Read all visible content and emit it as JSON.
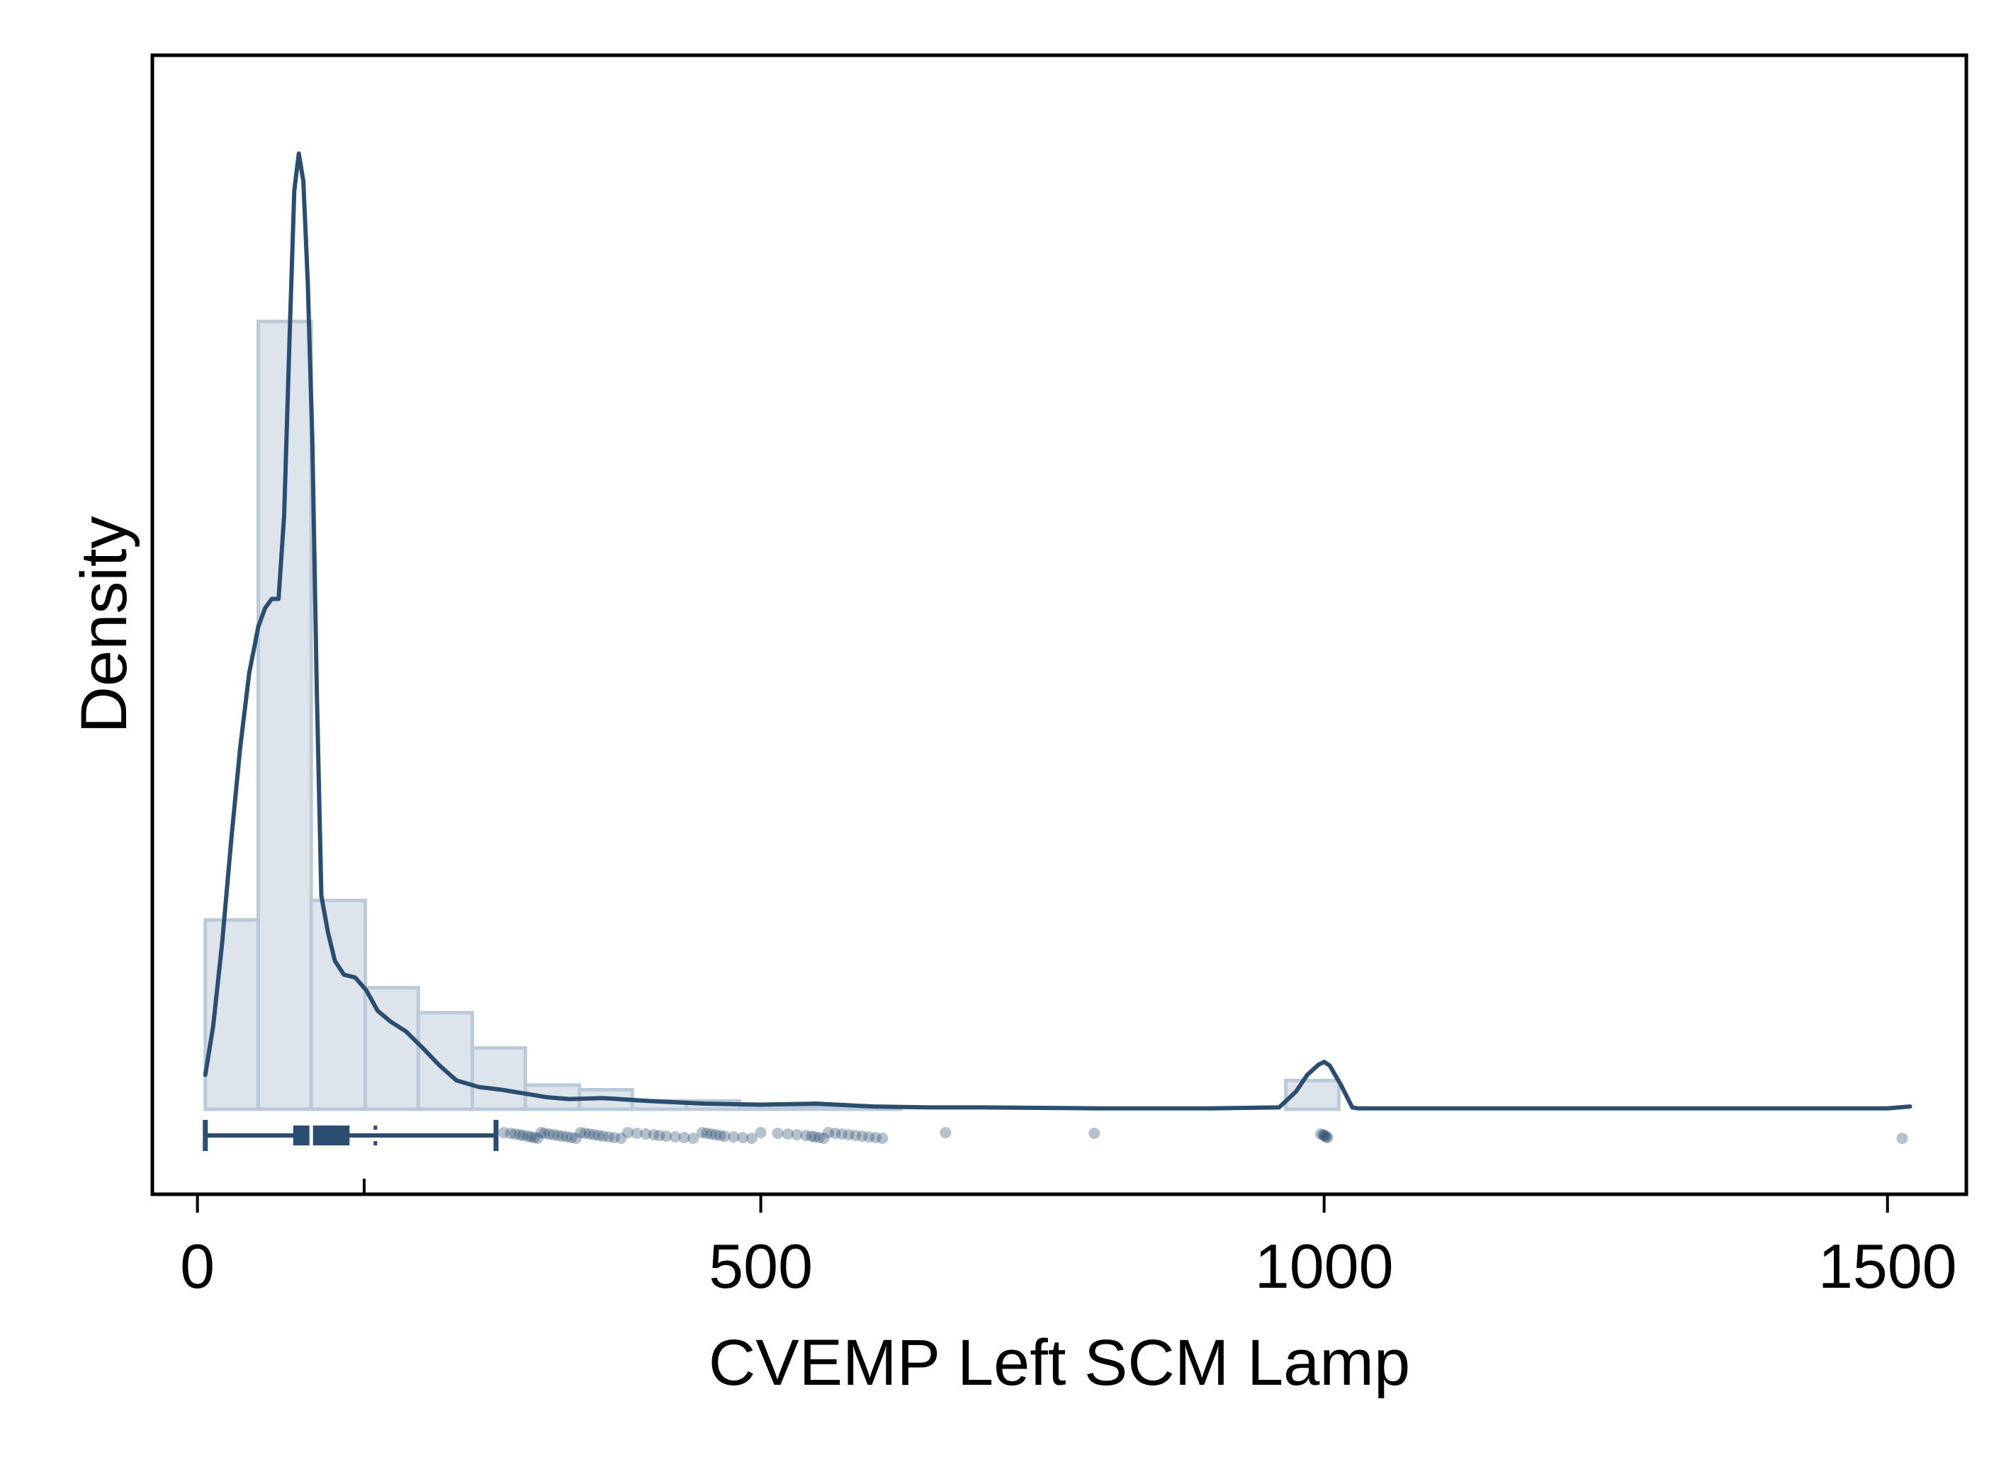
{
  "chart_data": {
    "type": "histogram",
    "title": "",
    "xlabel": "CVEMP Left SCM Lamp",
    "ylabel": "Density",
    "xlim": [
      -40,
      1570
    ],
    "x_ticks": [
      0,
      500,
      1000,
      1500
    ],
    "x_tick_labels": [
      "0",
      "500",
      "1000",
      "1500"
    ],
    "y_ticks_shown": false,
    "grid": false,
    "legend": "none",
    "colors": {
      "plot_background": "#dfe5ec",
      "accent": "#2a4d70",
      "bar_fill": "#dee4ec",
      "bar_edge": "#bccad7",
      "frame": "#000000"
    },
    "histogram": {
      "bin_width": 47.5,
      "bins": [
        {
          "x0": 7,
          "x1": 54,
          "density": 0.00204
        },
        {
          "x0": 54,
          "x1": 101,
          "density": 0.00849
        },
        {
          "x0": 101,
          "x1": 149,
          "density": 0.00225
        },
        {
          "x0": 149,
          "x1": 196,
          "density": 0.00131
        },
        {
          "x0": 196,
          "x1": 244,
          "density": 0.00104
        },
        {
          "x0": 244,
          "x1": 291,
          "density": 0.00066
        },
        {
          "x0": 291,
          "x1": 339,
          "density": 0.00026
        },
        {
          "x0": 339,
          "x1": 386,
          "density": 0.00021
        },
        {
          "x0": 386,
          "x1": 434,
          "density": 9e-05
        },
        {
          "x0": 434,
          "x1": 481,
          "density": 9e-05
        },
        {
          "x0": 481,
          "x1": 529,
          "density": 4e-05
        },
        {
          "x0": 529,
          "x1": 576,
          "density": 3e-05
        },
        {
          "x0": 576,
          "x1": 624,
          "density": 2e-05
        },
        {
          "x0": 966,
          "x1": 1013,
          "density": 0.00031
        }
      ]
    },
    "density_curve": {
      "x": [
        7,
        14,
        22,
        30,
        38,
        46,
        54,
        60,
        66,
        72,
        77,
        82,
        86,
        90,
        94,
        98,
        102,
        106,
        110,
        116,
        122,
        130,
        140,
        150,
        160,
        172,
        185,
        200,
        215,
        230,
        250,
        270,
        290,
        310,
        330,
        360,
        400,
        450,
        500,
        550,
        600,
        650,
        700,
        800,
        900,
        960,
        975,
        985,
        995,
        1000,
        1005,
        1015,
        1025,
        1030,
        1100,
        1300,
        1500,
        1520
      ],
      "y": [
        0.00037,
        0.0009,
        0.0018,
        0.0029,
        0.0039,
        0.0047,
        0.0052,
        0.0054,
        0.0055,
        0.0055,
        0.0064,
        0.0084,
        0.0099,
        0.0103,
        0.01,
        0.0089,
        0.0072,
        0.0045,
        0.0023,
        0.0019,
        0.0016,
        0.00145,
        0.00142,
        0.00128,
        0.00106,
        0.00094,
        0.00084,
        0.00066,
        0.00047,
        0.00031,
        0.00024,
        0.00021,
        0.00017,
        0.00013,
        0.00011,
        0.00012,
        9e-05,
        6e-05,
        5e-05,
        6e-05,
        3e-05,
        2e-05,
        2e-05,
        1e-05,
        1e-05,
        2e-05,
        0.00019,
        0.00037,
        0.00048,
        0.00051,
        0.00047,
        0.00026,
        2e-05,
        1e-05,
        1e-05,
        1e-05,
        1e-05,
        3e-05
      ]
    },
    "boxplot": {
      "whisker_low": 7,
      "q1": 85,
      "median": 101,
      "q3": 135,
      "ci_high": 158,
      "whisker_high": 265
    },
    "outliers": [
      272,
      278,
      282,
      286,
      289,
      293,
      296,
      299,
      302,
      305,
      308,
      312,
      316,
      320,
      324,
      328,
      332,
      336,
      340,
      344,
      348,
      352,
      356,
      360,
      365,
      370,
      376,
      382,
      390,
      398,
      405,
      410,
      416,
      424,
      432,
      440,
      448,
      452,
      456,
      460,
      464,
      468,
      476,
      484,
      492,
      500,
      515,
      524,
      532,
      540,
      545,
      548,
      552,
      556,
      560,
      566,
      572,
      578,
      584,
      590,
      596,
      602,
      608,
      664,
      796,
      997,
      999,
      1000,
      1001,
      1002,
      1003,
      1513
    ]
  }
}
